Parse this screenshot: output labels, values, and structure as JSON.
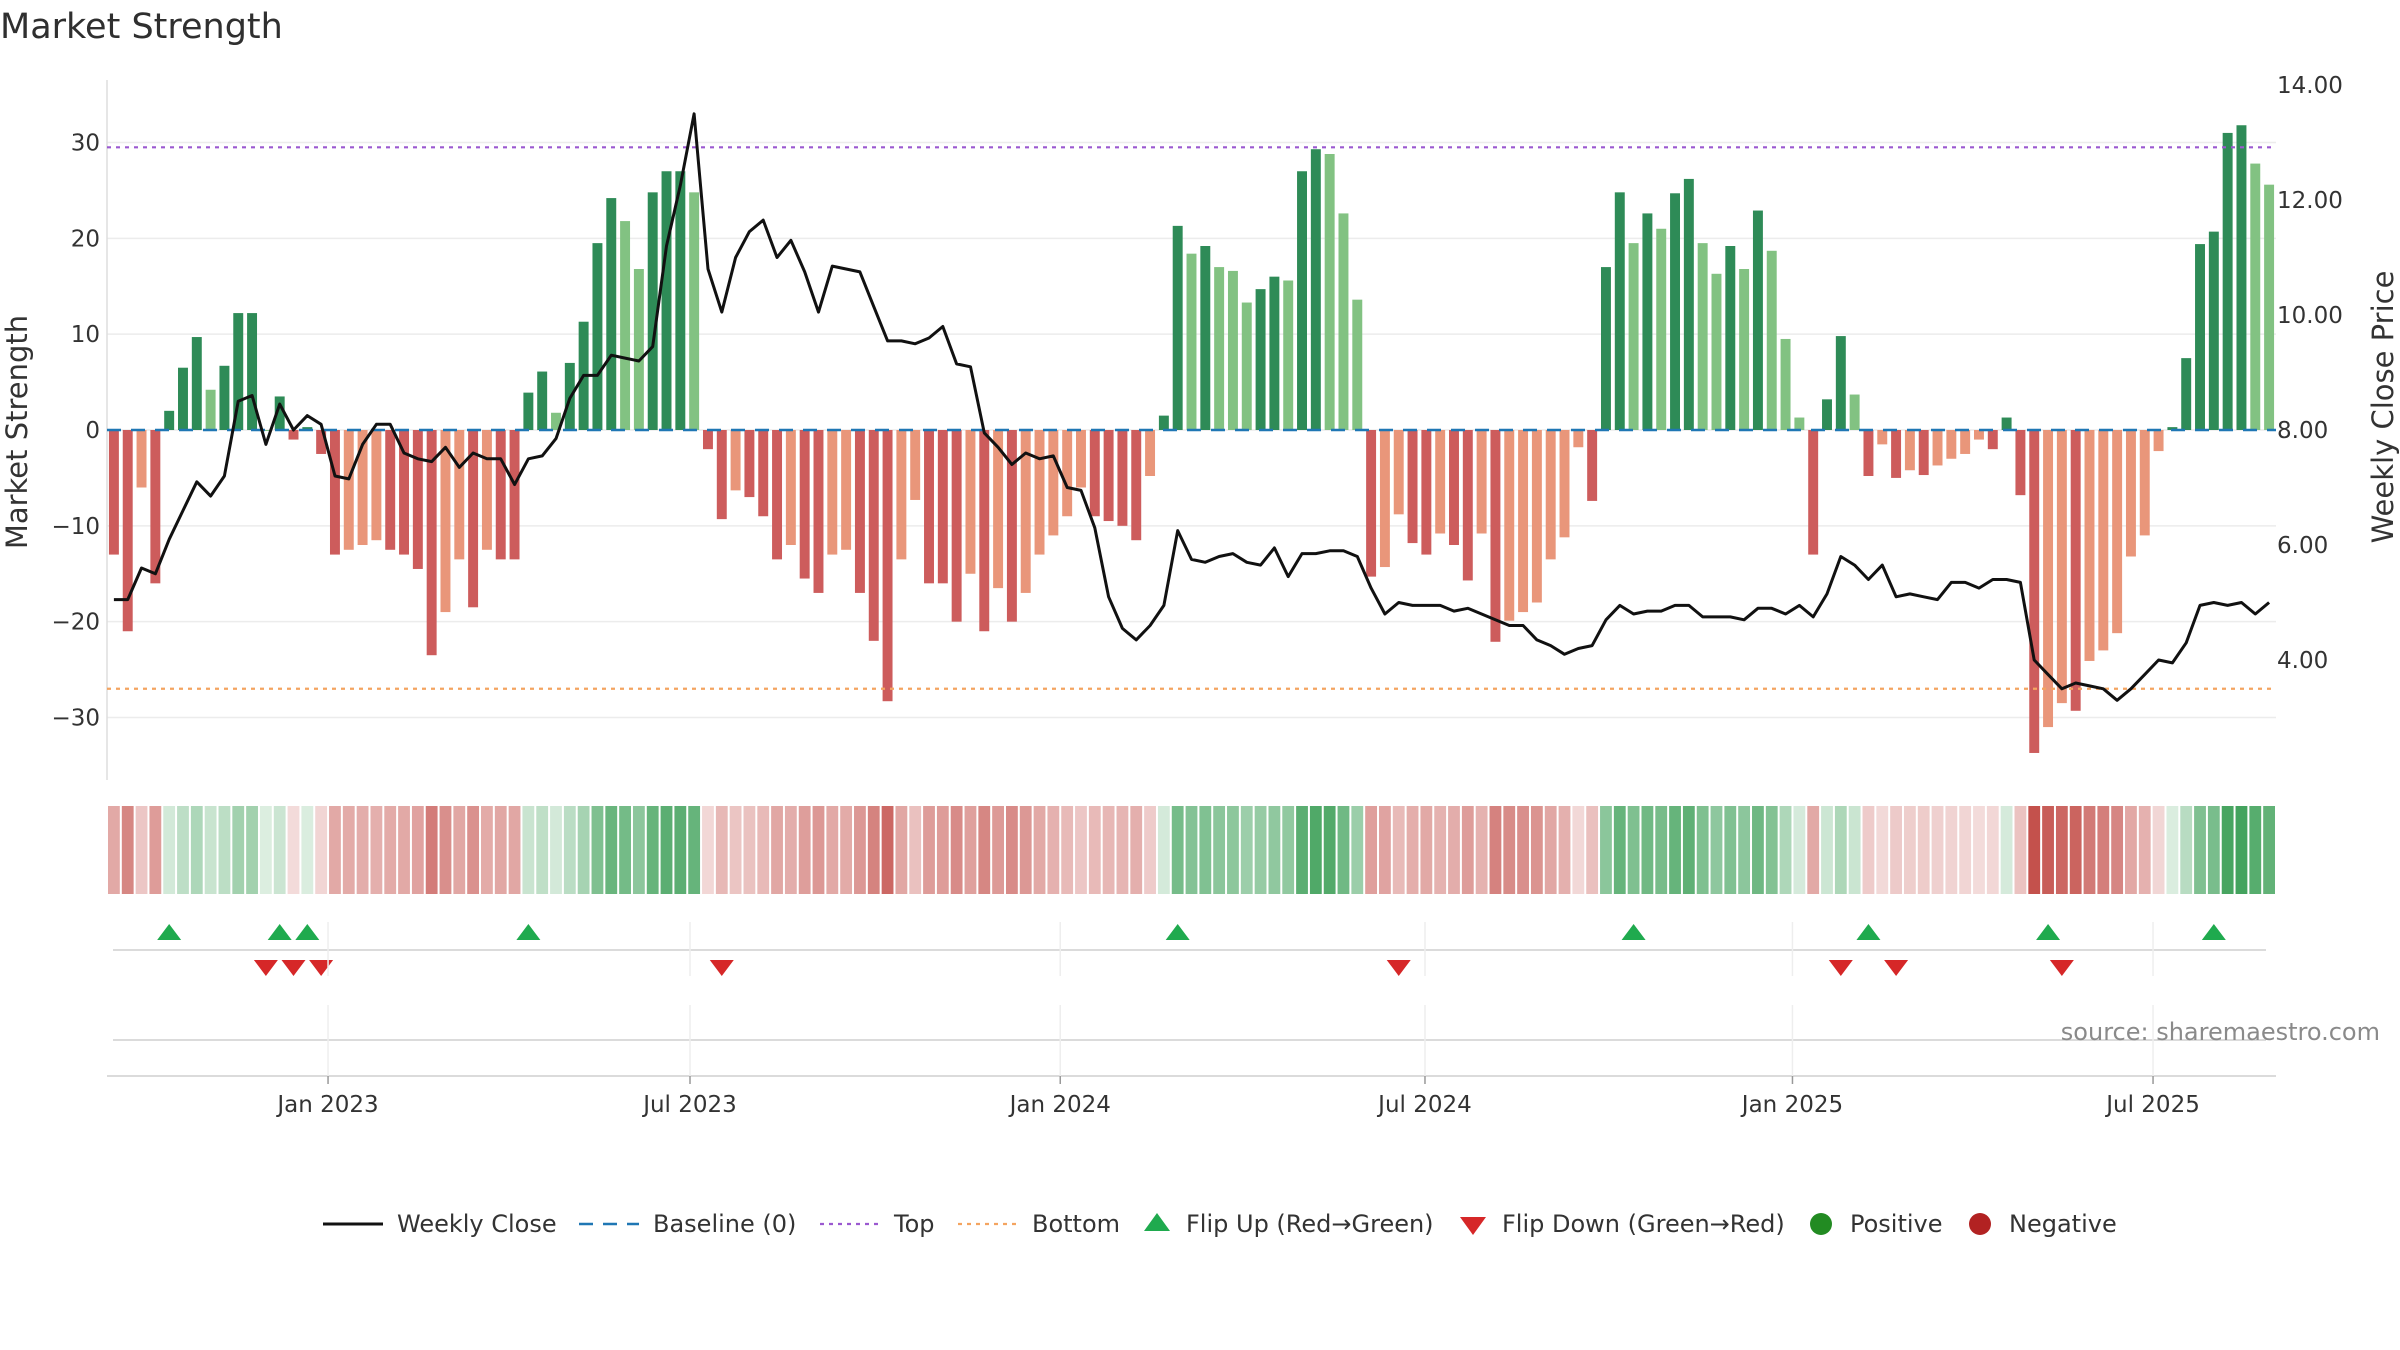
{
  "chart_data": {
    "type": "bar+line",
    "title": "Market Strength",
    "ylabel_left": "Market Strength",
    "ylabel_right": "Weekly Close Price",
    "source_note": "source: sharemaestro.com",
    "ylim_left": [
      -36,
      36
    ],
    "ylim_right": [
      2.0,
      14.0
    ],
    "yticks_left": [
      {
        "v": 30,
        "label": "30"
      },
      {
        "v": 20,
        "label": "20"
      },
      {
        "v": 10,
        "label": "10"
      },
      {
        "v": 0,
        "label": "0"
      },
      {
        "v": -10,
        "label": "−10"
      },
      {
        "v": -20,
        "label": "−20"
      },
      {
        "v": -30,
        "label": "−30"
      }
    ],
    "yticks_right": [
      {
        "v": 14,
        "label": "14.00"
      },
      {
        "v": 12,
        "label": "12.00"
      },
      {
        "v": 10,
        "label": "10.00"
      },
      {
        "v": 8,
        "label": "8.00"
      },
      {
        "v": 6,
        "label": "6.00"
      },
      {
        "v": 4,
        "label": "4.00"
      }
    ],
    "x_week_range": [
      0,
      159
    ],
    "xticks": [
      {
        "week": 15.5,
        "label": "Jan 2023"
      },
      {
        "week": 41.7,
        "label": "Jul 2023"
      },
      {
        "week": 68.5,
        "label": "Jan 2024"
      },
      {
        "week": 94.9,
        "label": "Jul 2024"
      },
      {
        "week": 121.5,
        "label": "Jan 2025"
      },
      {
        "week": 147.6,
        "label": "Jul 2025"
      }
    ],
    "top_threshold": 29.5,
    "bottom_threshold": -27,
    "strength": [
      -13,
      -21,
      -6,
      -16,
      2,
      6.5,
      9.7,
      4.2,
      6.7,
      12.2,
      12.2,
      0,
      3.5,
      -1,
      0.3,
      -2.5,
      -13,
      -12.5,
      -12,
      -11.5,
      -12.5,
      -13,
      -14.5,
      -23.5,
      -19,
      -13.5,
      -18.5,
      -12.5,
      -13.5,
      -13.5,
      3.9,
      6.1,
      1.8,
      7,
      11.3,
      19.5,
      24.2,
      21.8,
      16.8,
      24.8,
      27,
      27,
      24.8,
      -2,
      -9.3,
      -6.3,
      -7,
      -9,
      -13.5,
      -12,
      -15.5,
      -17,
      -13,
      -12.5,
      -17,
      -22,
      -28.3,
      -13.5,
      -7.3,
      -16,
      -16,
      -20,
      -15,
      -21,
      -16.5,
      -20,
      -17,
      -13,
      -11,
      -9,
      -6,
      -9,
      -9.5,
      -10,
      -11.5,
      -4.8,
      1.5,
      21.3,
      18.4,
      19.2,
      17,
      16.6,
      13.3,
      14.7,
      16,
      15.6,
      27,
      29.3,
      28.8,
      22.6,
      13.6,
      -15.3,
      -14.3,
      -8.8,
      -11.8,
      -13,
      -10.8,
      -12,
      -15.7,
      -10.8,
      -22.1,
      -19.9,
      -19,
      -18,
      -13.5,
      -11.2,
      -1.8,
      -7.4,
      17,
      24.8,
      19.5,
      22.6,
      21,
      24.7,
      26.2,
      19.5,
      16.3,
      19.2,
      16.8,
      22.9,
      18.7,
      9.5,
      1.3,
      -13,
      3.2,
      9.8,
      3.7,
      -4.8,
      -1.5,
      -5,
      -4.2,
      -4.7,
      -3.7,
      -3,
      -2.5,
      -1,
      -2,
      1.3,
      -6.8,
      -33.7,
      -31,
      -28.5,
      -29.3,
      -24.1,
      -23,
      -21.2,
      -13.2,
      -11,
      -2.2,
      0.3,
      7.5,
      19.4,
      20.7,
      31,
      31.8,
      27.8,
      25.6
    ],
    "weekly_close": [
      5.05,
      5.05,
      5.6,
      5.5,
      6.1,
      6.6,
      7.1,
      6.85,
      7.2,
      8.5,
      8.6,
      7.75,
      8.45,
      8.0,
      8.25,
      8.1,
      7.2,
      7.15,
      7.75,
      8.1,
      8.1,
      7.6,
      7.5,
      7.45,
      7.7,
      7.35,
      7.6,
      7.5,
      7.5,
      7.05,
      7.5,
      7.55,
      7.85,
      8.55,
      8.95,
      8.95,
      9.3,
      9.25,
      9.2,
      9.45,
      11.2,
      12.25,
      13.5,
      10.8,
      10.05,
      11.0,
      11.45,
      11.65,
      11.0,
      11.3,
      10.75,
      10.05,
      10.85,
      10.8,
      10.75,
      10.15,
      9.55,
      9.55,
      9.5,
      9.6,
      9.8,
      9.15,
      9.1,
      7.95,
      7.7,
      7.4,
      7.6,
      7.5,
      7.55,
      7.0,
      6.95,
      6.3,
      5.1,
      4.55,
      4.35,
      4.6,
      4.95,
      6.25,
      5.75,
      5.7,
      5.8,
      5.85,
      5.7,
      5.65,
      5.95,
      5.45,
      5.85,
      5.85,
      5.9,
      5.9,
      5.8,
      5.25,
      4.8,
      5.0,
      4.95,
      4.95,
      4.95,
      4.85,
      4.9,
      4.8,
      4.7,
      4.6,
      4.6,
      4.35,
      4.25,
      4.1,
      4.2,
      4.25,
      4.7,
      4.95,
      4.8,
      4.85,
      4.85,
      4.95,
      4.95,
      4.75,
      4.75,
      4.75,
      4.7,
      4.9,
      4.9,
      4.8,
      4.95,
      4.75,
      5.15,
      5.8,
      5.65,
      5.4,
      5.65,
      5.1,
      5.15,
      5.1,
      5.05,
      5.35,
      5.35,
      5.25,
      5.4,
      5.4,
      5.35,
      4.0,
      3.75,
      3.5,
      3.6,
      3.55,
      3.5,
      3.3,
      3.5,
      3.75,
      4.0,
      3.95,
      4.3,
      4.95,
      5.0,
      4.95,
      5.0,
      4.8,
      5.0
    ],
    "flip_up_weeks": [
      4,
      12,
      14,
      30,
      77,
      110,
      127,
      140,
      152
    ],
    "flip_down_weeks": [
      11,
      13,
      15,
      44,
      93,
      125,
      129,
      141
    ],
    "colors": {
      "positive_strong": "#2e8b57",
      "positive_weak": "#82c282",
      "negative_strong": "#cd5c5c",
      "negative_weak": "#e9967a",
      "line": "#111111",
      "baseline": "#1f77b4",
      "top": "#9b59d0",
      "bottom": "#f4a460",
      "flip_up": "#1faa4e",
      "flip_down": "#d62728",
      "positive_dot": "#228b22",
      "negative_dot": "#b22222"
    },
    "legend": [
      {
        "label": "Weekly Close",
        "kind": "line"
      },
      {
        "label": "Baseline (0)",
        "kind": "dash"
      },
      {
        "label": "Top",
        "kind": "dot-top"
      },
      {
        "label": "Bottom",
        "kind": "dot-bottom"
      },
      {
        "label": "Flip Up (Red→Green)",
        "kind": "tri-up"
      },
      {
        "label": "Flip Down (Green→Red)",
        "kind": "tri-down"
      },
      {
        "label": "Positive",
        "kind": "dot-pos"
      },
      {
        "label": "Negative",
        "kind": "dot-neg"
      }
    ]
  }
}
